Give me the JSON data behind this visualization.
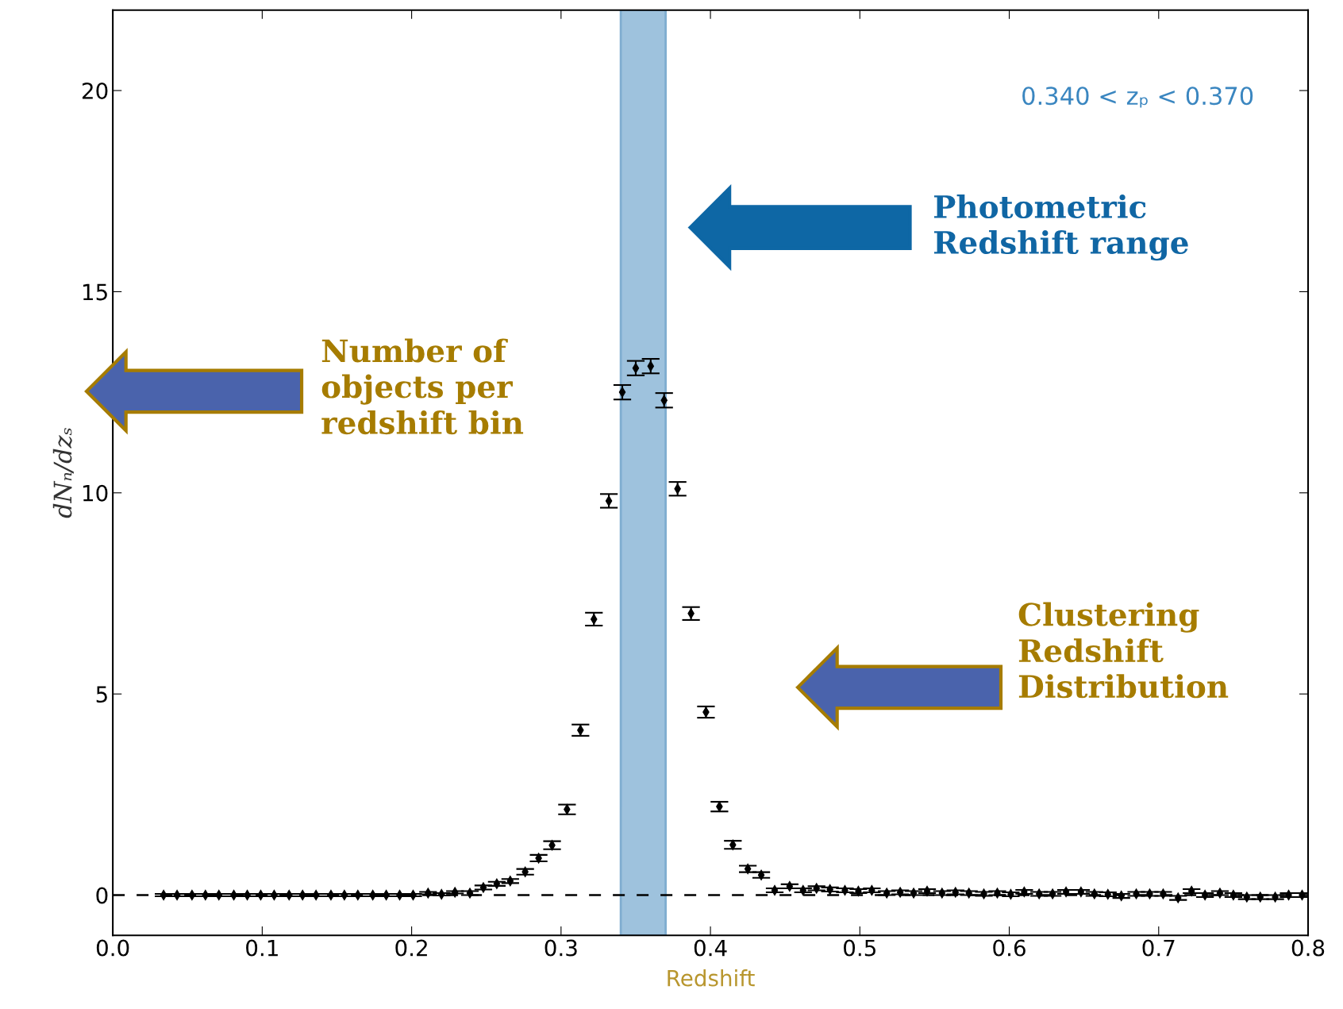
{
  "chart_data": {
    "type": "scatter",
    "xlabel": "Redshift",
    "ylabel": "dNₙ/dzₛ",
    "x": [
      0.034,
      0.043,
      0.053,
      0.062,
      0.071,
      0.081,
      0.09,
      0.099,
      0.108,
      0.118,
      0.127,
      0.136,
      0.146,
      0.155,
      0.164,
      0.174,
      0.183,
      0.192,
      0.201,
      0.211,
      0.22,
      0.229,
      0.239,
      0.248,
      0.257,
      0.266,
      0.276,
      0.285,
      0.294,
      0.304,
      0.313,
      0.322,
      0.332,
      0.341,
      0.35,
      0.36,
      0.369,
      0.378,
      0.387,
      0.397,
      0.406,
      0.415,
      0.425,
      0.434,
      0.443,
      0.453,
      0.462,
      0.471,
      0.48,
      0.49,
      0.499,
      0.508,
      0.518,
      0.527,
      0.536,
      0.545,
      0.555,
      0.564,
      0.573,
      0.583,
      0.592,
      0.601,
      0.61,
      0.62,
      0.629,
      0.638,
      0.648,
      0.657,
      0.666,
      0.675,
      0.685,
      0.694,
      0.703,
      0.713,
      0.722,
      0.731,
      0.741,
      0.75,
      0.759,
      0.768,
      0.778,
      0.787,
      0.796
    ],
    "series": [
      {
        "color": "#000000",
        "values": [
          0,
          0,
          0,
          0,
          0,
          0,
          0,
          0,
          0,
          0,
          0,
          0,
          0,
          0,
          0,
          0,
          0,
          0,
          0,
          0.05,
          0.02,
          0.07,
          0.05,
          0.19,
          0.28,
          0.35,
          0.58,
          0.92,
          1.24,
          2.13,
          4.1,
          6.86,
          9.8,
          12.5,
          13.1,
          13.15,
          12.3,
          10.1,
          7.0,
          4.55,
          2.2,
          1.25,
          0.65,
          0.5,
          0.12,
          0.22,
          0.12,
          0.17,
          0.14,
          0.12,
          0.1,
          0.12,
          0.05,
          0.07,
          0.05,
          0.1,
          0.05,
          0.07,
          0.05,
          0.03,
          0.05,
          0.02,
          0.08,
          0.03,
          0.03,
          0.08,
          0.08,
          0.03,
          0.02,
          -0.02,
          0.03,
          0.03,
          0.03,
          -0.07,
          0.1,
          0.0,
          0.05,
          0.0,
          -0.05,
          -0.05,
          -0.05,
          0.0,
          0.0
        ],
        "errors": [
          0.03,
          0.03,
          0.03,
          0.03,
          0.03,
          0.03,
          0.03,
          0.03,
          0.03,
          0.03,
          0.03,
          0.03,
          0.03,
          0.03,
          0.03,
          0.03,
          0.03,
          0.03,
          0.03,
          0.03,
          0.03,
          0.03,
          0.05,
          0.05,
          0.05,
          0.05,
          0.07,
          0.08,
          0.1,
          0.12,
          0.14,
          0.16,
          0.17,
          0.18,
          0.18,
          0.18,
          0.18,
          0.17,
          0.16,
          0.14,
          0.12,
          0.1,
          0.08,
          0.07,
          0.05,
          0.05,
          0.05,
          0.05,
          0.05,
          0.05,
          0.05,
          0.05,
          0.05,
          0.05,
          0.05,
          0.05,
          0.05,
          0.05,
          0.05,
          0.05,
          0.05,
          0.05,
          0.05,
          0.05,
          0.05,
          0.05,
          0.05,
          0.05,
          0.05,
          0.05,
          0.05,
          0.05,
          0.05,
          0.05,
          0.05,
          0.05,
          0.05,
          0.05,
          0.05,
          0.05,
          0.05,
          0.05,
          0.05
        ]
      }
    ],
    "marker": "diamond",
    "xlim": [
      0.0,
      0.8
    ],
    "ylim": [
      -1,
      22
    ],
    "xticks": [
      {
        "value": 0,
        "label": "0.0"
      },
      0.1,
      0.2,
      0.3,
      0.4,
      0.5,
      0.6,
      0.7,
      0.8
    ],
    "yticks": [
      0,
      5,
      10,
      15,
      20
    ],
    "ref_lines": [
      {
        "axis": "y",
        "value": 0,
        "color": "#000000",
        "line_style": "dashed"
      }
    ],
    "bands": [
      {
        "axis": "x",
        "from": 0.34,
        "to": 0.37,
        "color": "#9ec2dd"
      }
    ],
    "annotations": [
      "0.340 < zₚ < 0.370",
      "Photometric Redshift range",
      "Number of objects per redshift bin",
      "Clustering Redshift Distribution"
    ],
    "grid": false
  }
}
